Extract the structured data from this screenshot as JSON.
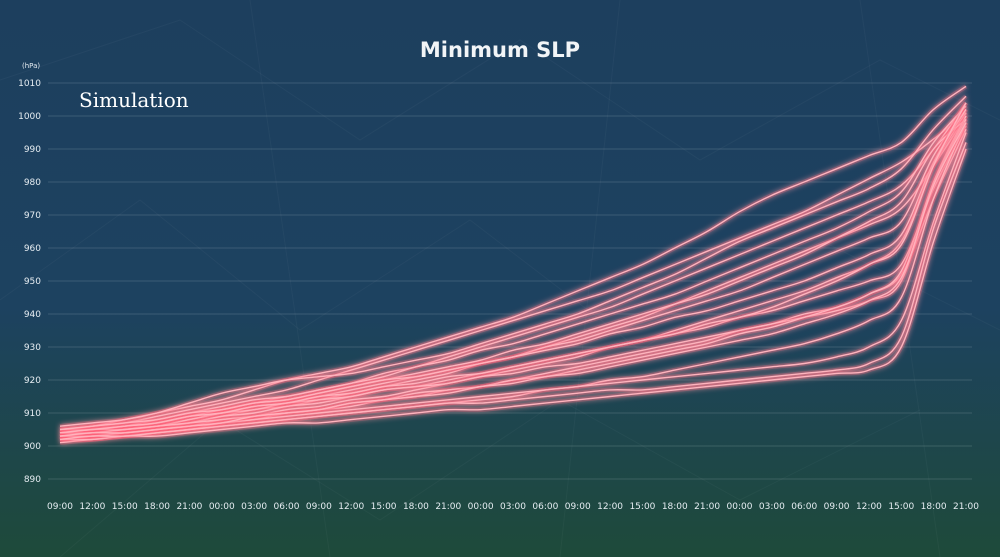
{
  "chart_data": {
    "type": "line",
    "title": "Minimum SLP",
    "annotation": "Simulation",
    "y_unit": "(hPa)",
    "ylim": [
      890,
      1010
    ],
    "yticks": [
      890,
      900,
      910,
      920,
      930,
      940,
      950,
      960,
      970,
      980,
      990,
      1000,
      1010
    ],
    "x_ticks": [
      "09:00",
      "12:00",
      "15:00",
      "18:00",
      "21:00",
      "00:00",
      "03:00",
      "06:00",
      "09:00",
      "12:00",
      "15:00",
      "18:00",
      "21:00",
      "00:00",
      "03:00",
      "06:00",
      "09:00",
      "12:00",
      "15:00",
      "18:00",
      "21:00",
      "00:00",
      "03:00",
      "06:00",
      "09:00",
      "12:00",
      "15:00",
      "18:00",
      "21:00"
    ],
    "grid": true,
    "legend": "none",
    "line_color": "#ffb3bd",
    "glow_color": "#ff5c78",
    "background_top": "#1d3f5e",
    "background_bottom": "#1e4a3a",
    "series": [
      {
        "values": [
          904,
          906,
          907,
          909,
          911,
          913,
          915,
          917,
          920,
          923,
          926,
          929,
          932,
          935,
          938,
          941,
          944,
          947,
          951,
          955,
          959,
          963,
          967,
          971,
          976,
          981,
          986,
          993,
          1001
        ]
      },
      {
        "values": [
          905,
          906,
          908,
          910,
          912,
          914,
          917,
          920,
          922,
          924,
          927,
          930,
          933,
          936,
          939,
          943,
          947,
          951,
          955,
          960,
          965,
          971,
          976,
          980,
          984,
          988,
          992,
          1002,
          1009
        ]
      },
      {
        "values": [
          903,
          904,
          905,
          907,
          909,
          911,
          913,
          915,
          917,
          919,
          922,
          924,
          927,
          930,
          933,
          936,
          939,
          942,
          946,
          950,
          954,
          958,
          962,
          966,
          970,
          974,
          979,
          990,
          1004
        ]
      },
      {
        "values": [
          902,
          903,
          904,
          905,
          907,
          909,
          911,
          912,
          914,
          916,
          918,
          920,
          922,
          925,
          927,
          930,
          933,
          936,
          939,
          943,
          947,
          951,
          955,
          959,
          963,
          967,
          972,
          985,
          1000
        ]
      },
      {
        "values": [
          906,
          907,
          908,
          910,
          913,
          916,
          918,
          920,
          921,
          922,
          924,
          926,
          928,
          931,
          934,
          937,
          940,
          944,
          948,
          952,
          957,
          962,
          966,
          970,
          974,
          978,
          984,
          996,
          1006
        ]
      },
      {
        "values": [
          904,
          905,
          906,
          908,
          910,
          912,
          914,
          915,
          917,
          919,
          921,
          924,
          926,
          929,
          931,
          934,
          937,
          940,
          943,
          946,
          950,
          954,
          958,
          962,
          966,
          971,
          977,
          992,
          1003
        ]
      },
      {
        "values": [
          903,
          904,
          905,
          906,
          908,
          910,
          912,
          913,
          915,
          917,
          919,
          921,
          923,
          925,
          927,
          930,
          932,
          935,
          938,
          941,
          944,
          947,
          951,
          955,
          959,
          963,
          968,
          988,
          1002
        ]
      },
      {
        "values": [
          902,
          903,
          904,
          905,
          906,
          908,
          909,
          911,
          912,
          914,
          915,
          917,
          919,
          921,
          923,
          925,
          927,
          930,
          932,
          935,
          938,
          941,
          944,
          947,
          951,
          955,
          962,
          985,
          1001
        ]
      },
      {
        "values": [
          905,
          905,
          906,
          907,
          909,
          911,
          913,
          914,
          916,
          918,
          920,
          922,
          924,
          926,
          929,
          931,
          934,
          937,
          940,
          943,
          946,
          950,
          954,
          958,
          963,
          968,
          974,
          990,
          999
        ]
      },
      {
        "values": [
          903,
          904,
          905,
          906,
          907,
          909,
          910,
          912,
          913,
          915,
          917,
          918,
          920,
          922,
          924,
          926,
          928,
          930,
          932,
          934,
          936,
          939,
          941,
          944,
          947,
          950,
          955,
          978,
          997
        ]
      },
      {
        "values": [
          902,
          902,
          903,
          904,
          905,
          907,
          908,
          910,
          911,
          912,
          914,
          915,
          917,
          918,
          920,
          922,
          924,
          926,
          928,
          930,
          932,
          935,
          937,
          940,
          942,
          946,
          952,
          975,
          996
        ]
      },
      {
        "values": [
          904,
          905,
          905,
          906,
          908,
          910,
          911,
          913,
          914,
          915,
          917,
          918,
          919,
          921,
          922,
          924,
          925,
          927,
          929,
          931,
          933,
          935,
          937,
          939,
          941,
          944,
          950,
          980,
          1000
        ]
      },
      {
        "values": [
          901,
          902,
          903,
          904,
          905,
          906,
          907,
          908,
          909,
          910,
          911,
          912,
          913,
          914,
          915,
          917,
          918,
          920,
          921,
          923,
          925,
          927,
          929,
          931,
          934,
          938,
          945,
          975,
          998
        ]
      },
      {
        "values": [
          903,
          903,
          904,
          905,
          906,
          907,
          908,
          909,
          910,
          911,
          912,
          913,
          914,
          915,
          916,
          917,
          918,
          919,
          920,
          921,
          922,
          923,
          924,
          925,
          927,
          930,
          938,
          968,
          995
        ]
      },
      {
        "values": [
          902,
          902,
          903,
          903,
          904,
          905,
          906,
          907,
          907,
          908,
          909,
          910,
          911,
          911,
          912,
          913,
          914,
          915,
          916,
          917,
          918,
          919,
          920,
          921,
          922,
          923,
          930,
          962,
          990
        ]
      },
      {
        "values": [
          904,
          904,
          905,
          906,
          907,
          908,
          909,
          910,
          911,
          913,
          914,
          916,
          917,
          918,
          920,
          921,
          923,
          925,
          927,
          929,
          931,
          934,
          936,
          939,
          942,
          946,
          953,
          980,
          999
        ]
      },
      {
        "values": [
          905,
          906,
          907,
          908,
          910,
          911,
          913,
          914,
          916,
          918,
          920,
          921,
          923,
          925,
          927,
          929,
          931,
          934,
          936,
          939,
          941,
          944,
          947,
          950,
          954,
          958,
          964,
          986,
          1002
        ]
      },
      {
        "values": [
          903,
          904,
          904,
          905,
          906,
          907,
          909,
          910,
          911,
          913,
          914,
          915,
          916,
          918,
          919,
          921,
          922,
          924,
          926,
          928,
          930,
          932,
          934,
          937,
          940,
          944,
          951,
          979,
          998
        ]
      },
      {
        "values": [
          904,
          905,
          906,
          907,
          909,
          910,
          912,
          913,
          915,
          916,
          918,
          919,
          921,
          922,
          924,
          926,
          928,
          930,
          932,
          934,
          937,
          939,
          942,
          946,
          950,
          955,
          961,
          985,
          1004
        ]
      },
      {
        "values": [
          902,
          903,
          903,
          904,
          905,
          906,
          907,
          908,
          909,
          910,
          911,
          912,
          913,
          913,
          914,
          915,
          916,
          917,
          917,
          918,
          919,
          920,
          921,
          922,
          923,
          925,
          933,
          966,
          992
        ]
      }
    ]
  }
}
